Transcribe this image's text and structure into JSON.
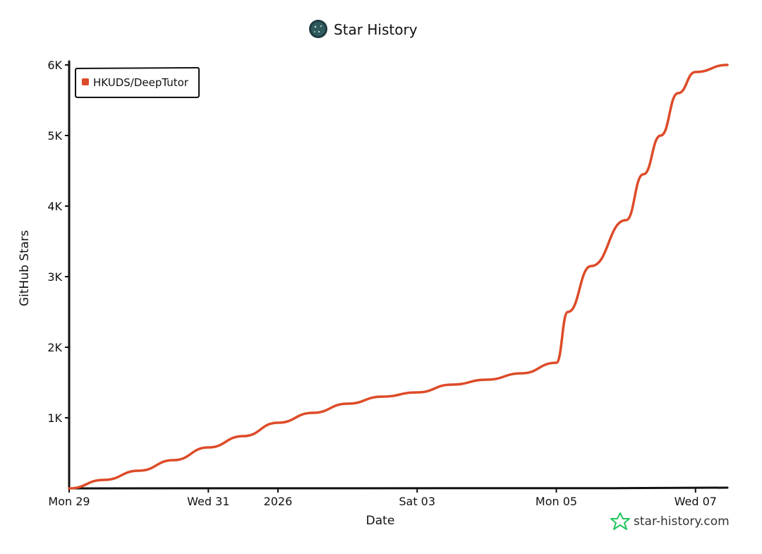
{
  "header": {
    "title": "Star History",
    "logo_icon": "avatar-logo-icon"
  },
  "watermark": {
    "label": "star-history.com",
    "icon": "star-outline-icon",
    "icon_color": "#22c55e"
  },
  "colors": {
    "series": "#dd4b28",
    "axis": "#111111",
    "background": "#ffffff"
  },
  "chart_data": {
    "type": "line",
    "title": "Star History",
    "xlabel": "Date",
    "ylabel": "GitHub Stars",
    "x_type": "date",
    "xlim": [
      "2025-12-29",
      "2026-01-07T11:00"
    ],
    "ylim": [
      0,
      6000
    ],
    "y_ticks": [
      {
        "value": 1000,
        "label": "1K"
      },
      {
        "value": 2000,
        "label": "2K"
      },
      {
        "value": 3000,
        "label": "3K"
      },
      {
        "value": 4000,
        "label": "4K"
      },
      {
        "value": 5000,
        "label": "5K"
      },
      {
        "value": 6000,
        "label": "6K"
      }
    ],
    "x_ticks": [
      {
        "value": "2025-12-29",
        "label": "Mon 29"
      },
      {
        "value": "2025-12-31",
        "label": "Wed 31"
      },
      {
        "value": "2026-01-01",
        "label": "2026"
      },
      {
        "value": "2026-01-03",
        "label": "Sat 03"
      },
      {
        "value": "2026-01-05",
        "label": "Mon 05"
      },
      {
        "value": "2026-01-07",
        "label": "Wed 07"
      }
    ],
    "grid": false,
    "legend_position": "top-left",
    "series": [
      {
        "name": "HKUDS/DeepTutor",
        "color": "#dd4b28",
        "points": [
          {
            "x": "2025-12-29T00:00",
            "y": 0
          },
          {
            "x": "2025-12-29T12:00",
            "y": 120
          },
          {
            "x": "2025-12-30T00:00",
            "y": 250
          },
          {
            "x": "2025-12-30T12:00",
            "y": 400
          },
          {
            "x": "2025-12-31T00:00",
            "y": 580
          },
          {
            "x": "2025-12-31T12:00",
            "y": 740
          },
          {
            "x": "2026-01-01T00:00",
            "y": 930
          },
          {
            "x": "2026-01-01T12:00",
            "y": 1070
          },
          {
            "x": "2026-01-02T00:00",
            "y": 1200
          },
          {
            "x": "2026-01-02T12:00",
            "y": 1300
          },
          {
            "x": "2026-01-03T00:00",
            "y": 1360
          },
          {
            "x": "2026-01-03T12:00",
            "y": 1470
          },
          {
            "x": "2026-01-04T00:00",
            "y": 1540
          },
          {
            "x": "2026-01-04T12:00",
            "y": 1630
          },
          {
            "x": "2026-01-05T00:00",
            "y": 1780
          },
          {
            "x": "2026-01-05T04:00",
            "y": 2500
          },
          {
            "x": "2026-01-05T12:00",
            "y": 3150
          },
          {
            "x": "2026-01-06T00:00",
            "y": 3800
          },
          {
            "x": "2026-01-06T06:00",
            "y": 4450
          },
          {
            "x": "2026-01-06T12:00",
            "y": 5000
          },
          {
            "x": "2026-01-06T18:00",
            "y": 5600
          },
          {
            "x": "2026-01-07T00:00",
            "y": 5900
          },
          {
            "x": "2026-01-07T11:00",
            "y": 6000
          }
        ]
      }
    ]
  }
}
